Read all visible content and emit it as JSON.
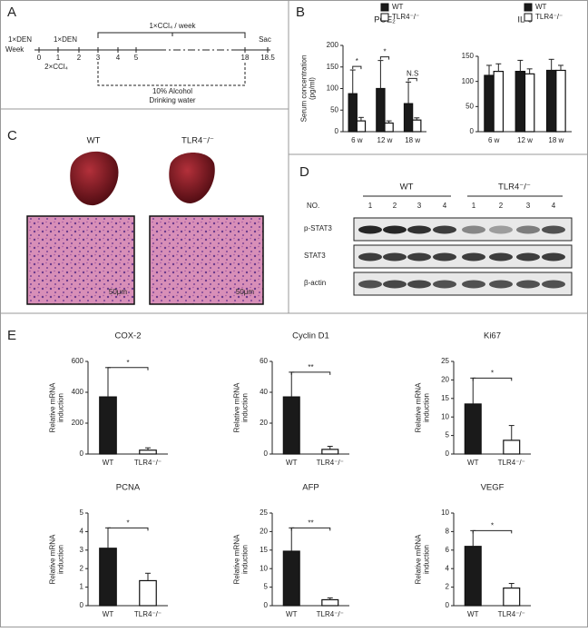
{
  "panel_a": {
    "label": "A",
    "week": "Week",
    "weeks": [
      "0",
      "1",
      "2",
      "3",
      "4",
      "5",
      "18",
      "18.5"
    ],
    "den": [
      "1×DEN",
      "1×DEN"
    ],
    "ccl4_2": "2×CCl₄",
    "ccl4_week": "1×CCl₄ / week",
    "sac": "Sac",
    "alcohol": [
      "10% Alcohol",
      "Drinking water"
    ]
  },
  "panel_b": {
    "label": "B"
  },
  "panel_c": {
    "label": "C",
    "groups": [
      "WT",
      "TLR4⁻/⁻"
    ],
    "scale": [
      "50μm",
      "50μm"
    ]
  },
  "panel_d": {
    "label": "D",
    "groups": [
      "WT",
      "TLR4⁻/⁻"
    ],
    "no": "NO.",
    "lanes": [
      "1",
      "2",
      "3",
      "4",
      "1",
      "2",
      "3",
      "4"
    ],
    "rows": [
      "p-STAT3",
      "STAT3",
      "β-actin"
    ]
  },
  "panel_e": {
    "label": "E"
  },
  "chart_data": [
    {
      "type": "bar",
      "title": "PGE₂",
      "ylabel": [
        "Serum concentration",
        "(pg/ml)"
      ],
      "categories": [
        "6 w",
        "12 w",
        "18 w"
      ],
      "series": [
        {
          "name": "WT",
          "color": "#1a1a1a",
          "values": [
            88,
            100,
            65
          ],
          "errors": [
            55,
            65,
            50
          ]
        },
        {
          "name": "TLR4⁻/⁻",
          "color": "#ffffff",
          "values": [
            25,
            20,
            27
          ],
          "errors": [
            8,
            5,
            5
          ]
        }
      ],
      "annotations": [
        "*",
        "*",
        "N.S"
      ],
      "ylim": [
        0,
        200
      ],
      "yticks": [
        0,
        50,
        100,
        150,
        200
      ]
    },
    {
      "type": "bar",
      "title": "IL-6",
      "categories": [
        "6 w",
        "12 w",
        "18 w"
      ],
      "series": [
        {
          "name": "WT",
          "color": "#1a1a1a",
          "values": [
            112,
            120,
            122
          ],
          "errors": [
            20,
            22,
            22
          ]
        },
        {
          "name": "TLR4⁻/⁻",
          "color": "#ffffff",
          "values": [
            120,
            115,
            122
          ],
          "errors": [
            15,
            10,
            10
          ]
        }
      ],
      "ylim": [
        0,
        150
      ],
      "yticks": [
        0,
        50,
        100,
        150
      ]
    },
    {
      "type": "bar",
      "title": "COX-2",
      "ylabel": [
        "Relative mRNA",
        "induction"
      ],
      "categories": [
        "WT",
        "TLR4⁻/⁻"
      ],
      "values": [
        370,
        25
      ],
      "errors": [
        190,
        15
      ],
      "colors": [
        "#1a1a1a",
        "#ffffff"
      ],
      "annotations": [
        "*"
      ],
      "ylim": [
        0,
        600
      ],
      "yticks": [
        0,
        200,
        400,
        600
      ]
    },
    {
      "type": "bar",
      "title": "Cyclin D1",
      "ylabel": [
        "Relative mRNA",
        "induction"
      ],
      "categories": [
        "WT",
        "TLR4⁻/⁻"
      ],
      "values": [
        37,
        3
      ],
      "errors": [
        16,
        2
      ],
      "colors": [
        "#1a1a1a",
        "#ffffff"
      ],
      "annotations": [
        "**"
      ],
      "ylim": [
        0,
        60
      ],
      "yticks": [
        0,
        20,
        40,
        60
      ]
    },
    {
      "type": "bar",
      "title": "Ki67",
      "ylabel": [
        "Relative mRNA",
        "induction"
      ],
      "categories": [
        "WT",
        "TLR4⁻/⁻"
      ],
      "values": [
        13.5,
        3.7
      ],
      "errors": [
        7,
        4
      ],
      "colors": [
        "#1a1a1a",
        "#ffffff"
      ],
      "annotations": [
        "*"
      ],
      "ylim": [
        0,
        25
      ],
      "yticks": [
        0,
        5,
        10,
        15,
        20,
        25
      ]
    },
    {
      "type": "bar",
      "title": "PCNA",
      "ylabel": [
        "Relative mRNA",
        "induction"
      ],
      "categories": [
        "WT",
        "TLR4⁻/⁻"
      ],
      "values": [
        3.1,
        1.35
      ],
      "errors": [
        1.1,
        0.4
      ],
      "colors": [
        "#1a1a1a",
        "#ffffff"
      ],
      "annotations": [
        "*"
      ],
      "ylim": [
        0,
        5
      ],
      "yticks": [
        0,
        1,
        2,
        3,
        4,
        5
      ]
    },
    {
      "type": "bar",
      "title": "AFP",
      "ylabel": [
        "Relative mRNA",
        "induction"
      ],
      "categories": [
        "WT",
        "TLR4⁻/⁻"
      ],
      "values": [
        14.7,
        1.6
      ],
      "errors": [
        6.3,
        0.5
      ],
      "colors": [
        "#1a1a1a",
        "#ffffff"
      ],
      "annotations": [
        "**"
      ],
      "ylim": [
        0,
        25
      ],
      "yticks": [
        0,
        5,
        10,
        15,
        20,
        25
      ]
    },
    {
      "type": "bar",
      "title": "VEGF",
      "ylabel": [
        "Relative mRNA",
        "induction"
      ],
      "categories": [
        "WT",
        "TLR4⁻/⁻"
      ],
      "values": [
        6.4,
        1.9
      ],
      "errors": [
        1.7,
        0.5
      ],
      "colors": [
        "#1a1a1a",
        "#ffffff"
      ],
      "annotations": [
        "*"
      ],
      "ylim": [
        0,
        10
      ],
      "yticks": [
        0,
        2,
        4,
        6,
        8,
        10
      ]
    }
  ]
}
